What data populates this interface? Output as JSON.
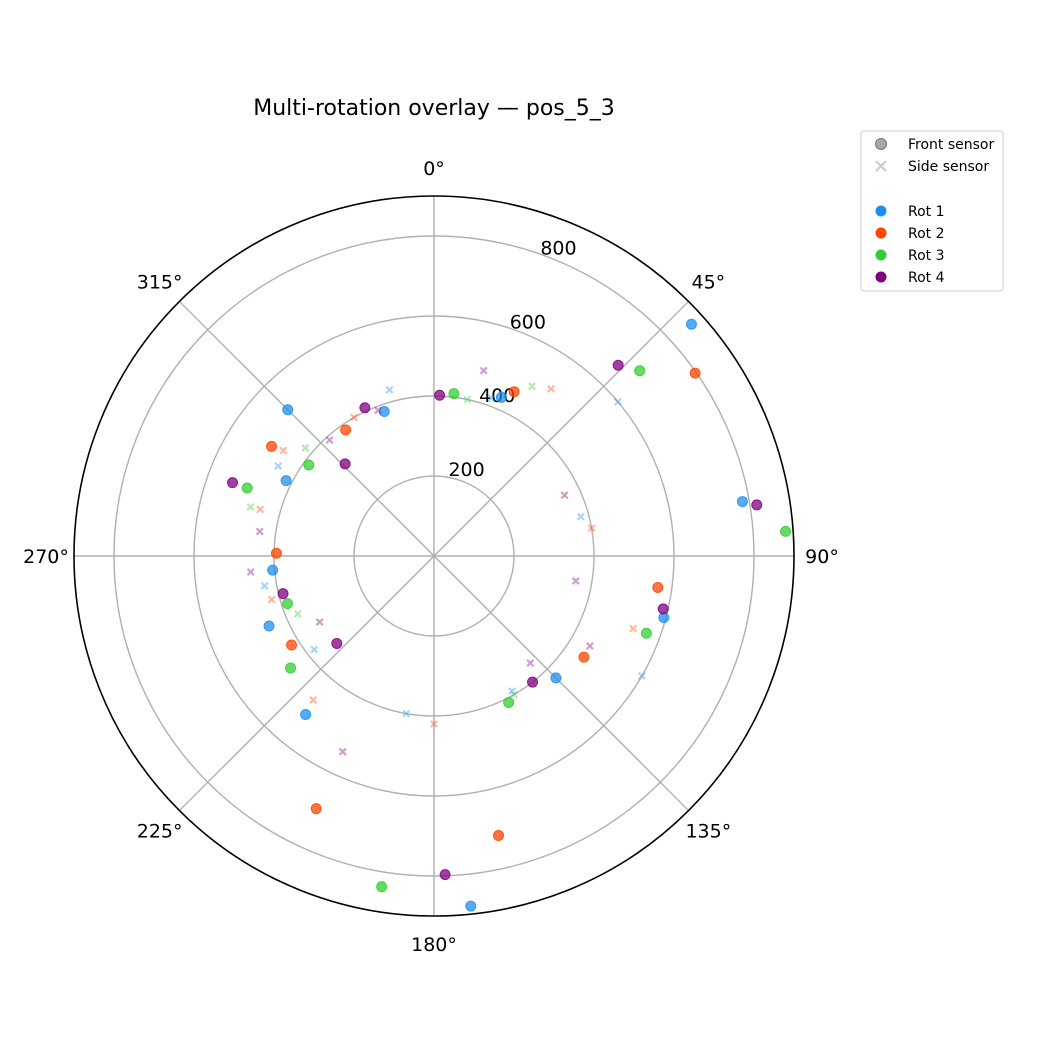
{
  "chart_data": {
    "type": "scatter",
    "projection": "polar",
    "title": "Multi-rotation overlay — pos_5_3",
    "theta_direction": "clockwise",
    "theta_zero": "top",
    "r_lim": [
      0,
      900
    ],
    "r_ticks": [
      200,
      400,
      600,
      800
    ],
    "r_tick_labels": [
      "200",
      "400",
      "600",
      "800"
    ],
    "theta_ticks": [
      0,
      45,
      90,
      135,
      180,
      225,
      270,
      315
    ],
    "theta_tick_labels": [
      "0°",
      "45°",
      "90°",
      "135°",
      "180°",
      "225°",
      "270°",
      "315°"
    ],
    "grid": true,
    "legend_placement": "outside-top-right",
    "legend": {
      "markers": [
        {
          "label": "Front sensor",
          "marker": "circle",
          "color": "#999999"
        },
        {
          "label": "Side sensor",
          "marker": "x",
          "color": "#cccccc"
        }
      ],
      "rotations": [
        {
          "label": "Rot 1",
          "color": "#1f8fef"
        },
        {
          "label": "Rot 2",
          "color": "#ff4500"
        },
        {
          "label": "Rot 3",
          "color": "#32cd32"
        },
        {
          "label": "Rot 4",
          "color": "#800080"
        }
      ]
    },
    "series": [
      {
        "name": "Rot 1",
        "sensor": "Front sensor",
        "color": "#1f8fef",
        "points": [
          [
            23,
            431
          ],
          [
            48,
            866
          ],
          [
            80,
            783
          ],
          [
            105,
            595
          ],
          [
            135,
            431
          ],
          [
            174,
            880
          ],
          [
            219,
            510
          ],
          [
            247,
            448
          ],
          [
            265,
            405
          ],
          [
            297,
            415
          ],
          [
            315,
            517
          ],
          [
            341,
            382
          ]
        ]
      },
      {
        "name": "Rot 2",
        "sensor": "Front sensor",
        "color": "#ff4500",
        "points": [
          [
            26,
            457
          ],
          [
            55,
            797
          ],
          [
            98,
            565
          ],
          [
            124,
            452
          ],
          [
            167,
            717
          ],
          [
            205,
            697
          ],
          [
            238,
            420
          ],
          [
            271,
            394
          ],
          [
            304,
            490
          ],
          [
            325,
            385
          ]
        ]
      },
      {
        "name": "Rot 3",
        "sensor": "Front sensor",
        "color": "#32cd32",
        "points": [
          [
            7,
            409
          ],
          [
            48,
            692
          ],
          [
            86,
            881
          ],
          [
            110,
            565
          ],
          [
            153,
            411
          ],
          [
            189,
            837
          ],
          [
            232,
            455
          ],
          [
            252,
            385
          ],
          [
            290,
            497
          ],
          [
            306,
            387
          ]
        ]
      },
      {
        "name": "Rot 4",
        "sensor": "Front sensor",
        "color": "#800080",
        "points": [
          [
            2,
            402
          ],
          [
            44,
            663
          ],
          [
            81,
            817
          ],
          [
            103,
            588
          ],
          [
            142,
            400
          ],
          [
            178,
            797
          ],
          [
            228,
            327
          ],
          [
            256,
            389
          ],
          [
            290,
            536
          ],
          [
            316,
            320
          ],
          [
            335,
            409
          ]
        ]
      },
      {
        "name": "Rot 1",
        "sensor": "Side sensor",
        "color": "#1f8fef",
        "points": [
          [
            20,
            420
          ],
          [
            50,
            600
          ],
          [
            75,
            380
          ],
          [
            120,
            600
          ],
          [
            150,
            390
          ],
          [
            190,
            400
          ],
          [
            232,
            380
          ],
          [
            260,
            430
          ],
          [
            300,
            450
          ],
          [
            345,
            430
          ]
        ]
      },
      {
        "name": "Rot 2",
        "sensor": "Side sensor",
        "color": "#ff4500",
        "points": [
          [
            35,
            510
          ],
          [
            80,
            400
          ],
          [
            110,
            530
          ],
          [
            180,
            420
          ],
          [
            220,
            470
          ],
          [
            255,
            420
          ],
          [
            285,
            450
          ],
          [
            305,
            460
          ],
          [
            330,
            400
          ]
        ]
      },
      {
        "name": "Rot 3",
        "sensor": "Side sensor",
        "color": "#32cd32",
        "points": [
          [
            12,
            400
          ],
          [
            30,
            490
          ],
          [
            150,
            400
          ],
          [
            247,
            370
          ],
          [
            285,
            475
          ],
          [
            310,
            420
          ]
        ]
      },
      {
        "name": "Rot 4",
        "sensor": "Side sensor",
        "color": "#800080",
        "points": [
          [
            15,
            480
          ],
          [
            65,
            360
          ],
          [
            100,
            360
          ],
          [
            120,
            450
          ],
          [
            138,
            360
          ],
          [
            205,
            540
          ],
          [
            240,
            330
          ],
          [
            265,
            460
          ],
          [
            278,
            440
          ],
          [
            318,
            390
          ],
          [
            339,
            390
          ]
        ]
      }
    ]
  }
}
